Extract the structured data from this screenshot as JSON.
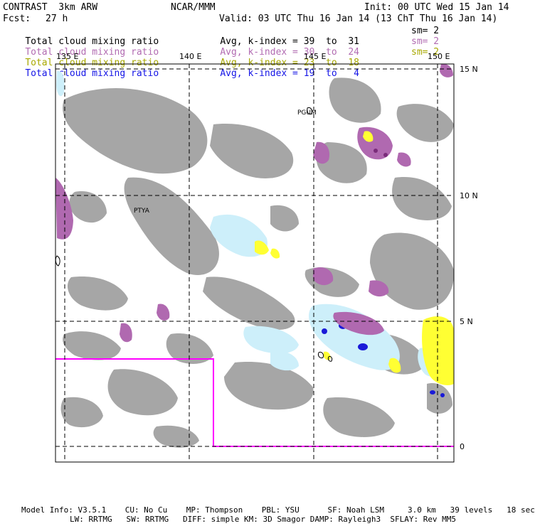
{
  "header": {
    "model": "CONTRASTˍ3km ARW",
    "agency": "NCAR/MMM",
    "init": "Init: 00 UTC Wed 15 Jan 14",
    "fcst_label": "Fcst:",
    "fcst_value": "27 h",
    "valid": "Valid: 03 UTC Thu 16 Jan 14 (13 ChT Thu 16 Jan 14)"
  },
  "legend": [
    {
      "field": "Total cloud mixing ratio",
      "stat": "Avg, k-index =",
      "k_from": "39",
      "to": "to",
      "k_to": "31",
      "smooth": "sm= 2",
      "color": "#000000"
    },
    {
      "field": "Total cloud mixing ratio",
      "stat": "Avg, k-index =",
      "k_from": "30",
      "to": "to",
      "k_to": "24",
      "smooth": "sm= 2",
      "color": "#b26cb2"
    },
    {
      "field": "Total cloud mixing ratio",
      "stat": "Avg, k-index =",
      "k_from": "23",
      "to": "to",
      "k_to": "18",
      "smooth": "sm= 2",
      "color": "#a8a800"
    },
    {
      "field": "Total cloud mixing ratio",
      "stat": "Avg, k-index =",
      "k_from": "19",
      "to": "to",
      "k_to": "4",
      "smooth": "",
      "color": "#1414e6"
    }
  ],
  "map": {
    "lon_labels": [
      "135 E",
      "140 E",
      "145 E",
      "150 E"
    ],
    "lat_labels": [
      "15 N",
      "10 N",
      "5 N",
      "0"
    ],
    "stations": [
      {
        "id": "PGUM",
        "lon": 144.8,
        "lat": 13.5
      },
      {
        "id": "PTYA",
        "lon": 138.1,
        "lat": 9.5
      }
    ],
    "colors": {
      "high_cloud": "#a6a6a6",
      "mid_cloud": "#b069b0",
      "low_cloud": "#ffff33",
      "shallow_cloud": "#cdeffa",
      "shallow_core": "#1a1ad8",
      "boundary": "#ff00ff"
    }
  },
  "footer": {
    "line1": "Model Info: V3.5.1    CU: No Cu    MP: Thompson    PBL: YSU      SF: Noah LSM     3.0 km   39 levels   18 sec",
    "line2": "LW: RRTMG   SW: RRTMG   DIFF: simple KM: 3D Smagor DAMP: Rayleigh3  SFLAY: Rev MM5"
  }
}
